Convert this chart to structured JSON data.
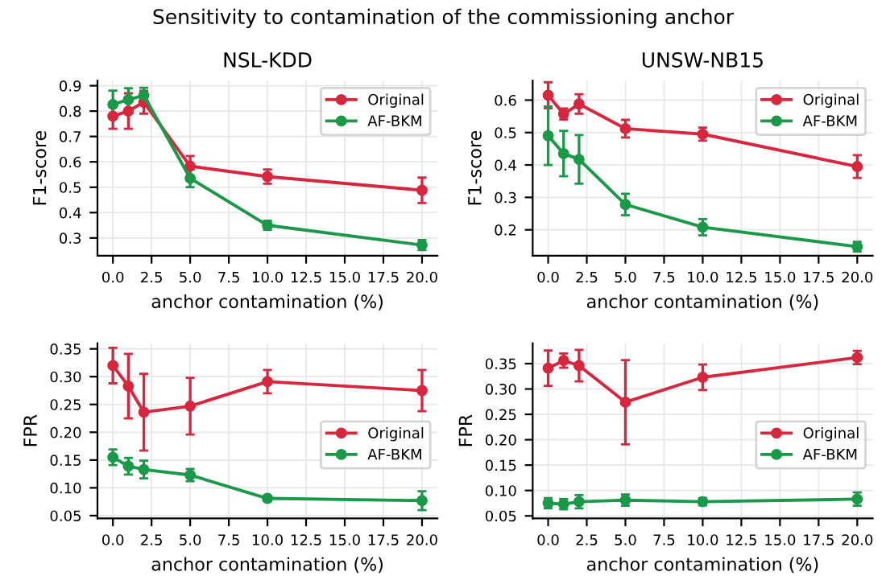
{
  "chart_data": [
    {
      "type": "line",
      "annotations": [
        "Sensitivity to contamination of the commissioning anchor"
      ],
      "title": "NSL-KDD",
      "xlabel": "anchor contamination (%)",
      "ylabel": "F1-score",
      "x": [
        0,
        1,
        2,
        5,
        10,
        20
      ],
      "xlim": [
        -1,
        21
      ],
      "xticks": [
        {
          "value": 0,
          "label": "0.0"
        },
        2.5,
        {
          "value": 5,
          "label": "5.0"
        },
        7.5,
        {
          "value": 10,
          "label": "10.0"
        },
        12.5,
        {
          "value": 15,
          "label": "15.0"
        },
        17.5,
        {
          "value": 20,
          "label": "20.0"
        }
      ],
      "ylim": [
        0.23,
        0.92
      ],
      "yticks": [
        0.3,
        0.4,
        0.5,
        0.6,
        0.7,
        0.8,
        0.9
      ],
      "grid": true,
      "legend": "top right",
      "marker": "circle",
      "series": [
        {
          "name": "Original",
          "color": "#d7263d",
          "values": [
            0.78,
            0.8,
            0.835,
            0.583,
            0.542,
            0.488
          ],
          "errors": [
            0.05,
            0.07,
            0.045,
            0.04,
            0.028,
            0.05
          ]
        },
        {
          "name": "AF-BKM",
          "color": "#1a9a48",
          "values": [
            0.826,
            0.845,
            0.862,
            0.535,
            0.35,
            0.272
          ],
          "errors": [
            0.055,
            0.045,
            0.03,
            0.035,
            0.018,
            0.02
          ]
        }
      ]
    },
    {
      "type": "line",
      "title": "UNSW-NB15",
      "xlabel": "anchor contamination (%)",
      "ylabel": "F1-score",
      "x": [
        0,
        1,
        2,
        5,
        10,
        20
      ],
      "xlim": [
        -1,
        21
      ],
      "xticks": [
        {
          "value": 0,
          "label": "0.0"
        },
        2.5,
        {
          "value": 5,
          "label": "5.0"
        },
        7.5,
        {
          "value": 10,
          "label": "10.0"
        },
        12.5,
        {
          "value": 15,
          "label": "15.0"
        },
        17.5,
        {
          "value": 20,
          "label": "20.0"
        }
      ],
      "ylim": [
        0.12,
        0.66
      ],
      "yticks": [
        0.2,
        0.3,
        0.4,
        0.5,
        0.6
      ],
      "grid": true,
      "legend": "top right",
      "marker": "circle",
      "series": [
        {
          "name": "Original",
          "color": "#d7263d",
          "values": [
            0.615,
            0.557,
            0.588,
            0.512,
            0.495,
            0.395
          ],
          "errors": [
            0.04,
            0.017,
            0.03,
            0.027,
            0.02,
            0.035
          ]
        },
        {
          "name": "AF-BKM",
          "color": "#1a9a48",
          "values": [
            0.49,
            0.435,
            0.417,
            0.278,
            0.208,
            0.148
          ],
          "errors": [
            0.09,
            0.07,
            0.075,
            0.033,
            0.025,
            0.015
          ]
        }
      ]
    },
    {
      "type": "line",
      "xlabel": "anchor contamination (%)",
      "ylabel": "FPR",
      "x": [
        0,
        1,
        2,
        5,
        10,
        20
      ],
      "xlim": [
        -1,
        21
      ],
      "xticks": [
        {
          "value": 0,
          "label": "0.0"
        },
        2.5,
        {
          "value": 5,
          "label": "5.0"
        },
        7.5,
        {
          "value": 10,
          "label": "10.0"
        },
        12.5,
        {
          "value": 15,
          "label": "15.0"
        },
        17.5,
        {
          "value": 20,
          "label": "20.0"
        }
      ],
      "ylim": [
        0.045,
        0.36
      ],
      "yticks": [
        0.05,
        {
          "value": 0.1,
          "label": "0.10"
        },
        0.15,
        {
          "value": 0.2,
          "label": "0.20"
        },
        0.25,
        {
          "value": 0.3,
          "label": "0.30"
        },
        0.35
      ],
      "grid": true,
      "legend": "right",
      "marker": "circle",
      "series": [
        {
          "name": "Original",
          "color": "#d7263d",
          "values": [
            0.32,
            0.283,
            0.236,
            0.247,
            0.291,
            0.275
          ],
          "errors": [
            0.032,
            0.058,
            0.069,
            0.051,
            0.021,
            0.037
          ]
        },
        {
          "name": "AF-BKM",
          "color": "#1a9a48",
          "values": [
            0.155,
            0.139,
            0.133,
            0.123,
            0.081,
            0.077
          ],
          "errors": [
            0.014,
            0.015,
            0.016,
            0.011,
            0.005,
            0.017
          ]
        }
      ]
    },
    {
      "type": "line",
      "xlabel": "anchor contamination (%)",
      "ylabel": "FPR",
      "x": [
        0,
        1,
        2,
        5,
        10,
        20
      ],
      "xlim": [
        -1,
        21
      ],
      "xticks": [
        {
          "value": 0,
          "label": "0.0"
        },
        2.5,
        {
          "value": 5,
          "label": "5.0"
        },
        7.5,
        {
          "value": 10,
          "label": "10.0"
        },
        12.5,
        {
          "value": 15,
          "label": "15.0"
        },
        17.5,
        {
          "value": 20,
          "label": "20.0"
        }
      ],
      "ylim": [
        0.045,
        0.39
      ],
      "yticks": [
        0.05,
        {
          "value": 0.1,
          "label": "0.10"
        },
        0.15,
        {
          "value": 0.2,
          "label": "0.20"
        },
        0.25,
        {
          "value": 0.3,
          "label": "0.30"
        },
        0.35
      ],
      "grid": true,
      "legend": "right",
      "marker": "circle",
      "series": [
        {
          "name": "Original",
          "color": "#d7263d",
          "values": [
            0.341,
            0.356,
            0.346,
            0.274,
            0.323,
            0.362
          ],
          "errors": [
            0.035,
            0.014,
            0.031,
            0.083,
            0.025,
            0.013
          ]
        },
        {
          "name": "AF-BKM",
          "color": "#1a9a48",
          "values": [
            0.075,
            0.073,
            0.078,
            0.081,
            0.078,
            0.083
          ],
          "errors": [
            0.01,
            0.01,
            0.013,
            0.011,
            0.007,
            0.013
          ]
        }
      ]
    }
  ]
}
